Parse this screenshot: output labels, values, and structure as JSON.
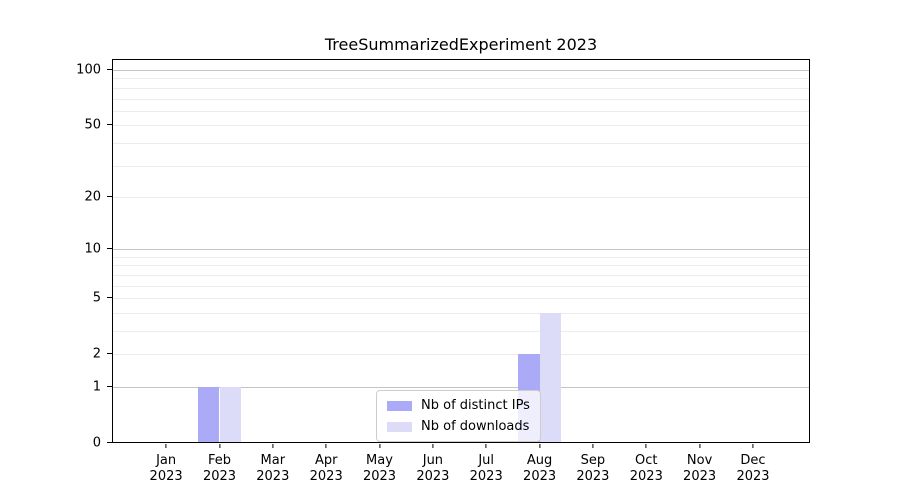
{
  "chart_data": {
    "type": "bar",
    "title": "TreeSummarizedExperiment 2023",
    "categories": [
      "Jan",
      "Feb",
      "Mar",
      "Apr",
      "May",
      "Jun",
      "Jul",
      "Aug",
      "Sep",
      "Oct",
      "Nov",
      "Dec"
    ],
    "x_tick_second_line": "2023",
    "series": [
      {
        "name": "Nb of distinct IPs",
        "color": "#aaaaf6",
        "values": [
          0,
          1,
          0,
          0,
          0,
          0,
          0,
          2,
          0,
          0,
          0,
          0
        ]
      },
      {
        "name": "Nb of downloads",
        "color": "#dcdcf8",
        "values": [
          0,
          1,
          0,
          0,
          0,
          0,
          0,
          4,
          0,
          0,
          0,
          0
        ]
      }
    ],
    "y_axis": {
      "scale": "log10(1+x)",
      "tick_values": [
        0,
        1,
        2,
        5,
        10,
        20,
        50,
        100
      ],
      "grid_values": [
        1,
        2,
        3,
        4,
        5,
        6,
        7,
        8,
        9,
        10,
        20,
        30,
        40,
        50,
        60,
        70,
        80,
        90,
        100
      ],
      "major_grid_values": [
        1,
        10,
        100
      ],
      "major_grid_color": "#c4c4c4",
      "minor_grid_color": "#ececec",
      "ylim_top": 115
    },
    "legend": {
      "position": "lower center",
      "border_color": "#cccccc",
      "background": "rgba(255,255,255,0.8)"
    },
    "axis_color": "#000000",
    "grid": true
  }
}
